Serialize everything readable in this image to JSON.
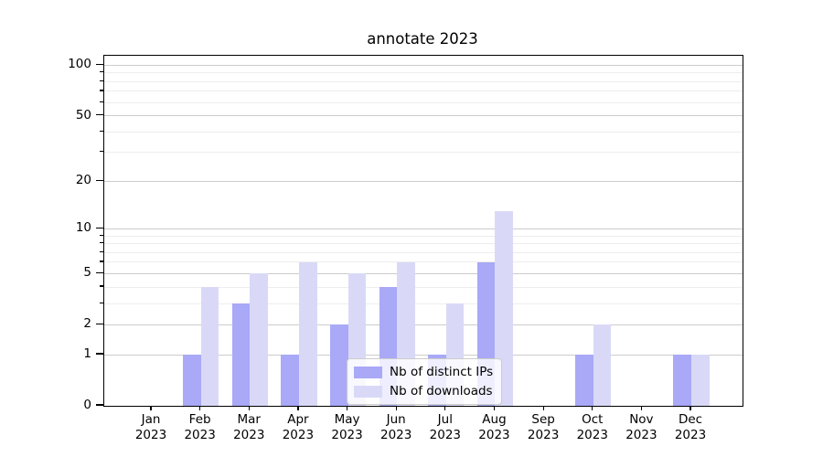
{
  "title": "annotate 2023",
  "legend": {
    "items": [
      {
        "label": "Nb of distinct IPs",
        "swatch": "legend-swatch-distinct-ips"
      },
      {
        "label": "Nb of downloads",
        "swatch": "legend-swatch-downloads"
      }
    ]
  },
  "colors": {
    "distinct_ips_bar": "#a9a9f7",
    "downloads_bar": "#d9d9f7",
    "grid_major": "#cccccc",
    "grid_minor": "#ededed",
    "axis": "#000000"
  },
  "chart_data": {
    "type": "bar",
    "title": "annotate 2023",
    "categories": [
      "Jan",
      "Feb",
      "Mar",
      "Apr",
      "May",
      "Jun",
      "Jul",
      "Aug",
      "Sep",
      "Oct",
      "Nov",
      "Dec"
    ],
    "category_year": "2023",
    "series": [
      {
        "name": "Nb of distinct IPs",
        "color": "#a9a9f7",
        "values": [
          0,
          1,
          3,
          1,
          2,
          4,
          1,
          6,
          0,
          1,
          0,
          1
        ]
      },
      {
        "name": "Nb of downloads",
        "color": "#d9d9f7",
        "values": [
          0,
          4,
          5,
          6,
          5,
          6,
          3,
          13,
          0,
          2,
          0,
          1
        ]
      }
    ],
    "xlabel": "",
    "ylabel": "",
    "yscale": "log1p",
    "ylim": [
      0,
      114
    ],
    "y_major_ticks": [
      0,
      1,
      2,
      5,
      10,
      20,
      50,
      100
    ],
    "y_minor_ticks": [
      3,
      4,
      6,
      7,
      8,
      9,
      30,
      40,
      60,
      70,
      80,
      90
    ],
    "grid": true,
    "legend_position": "lower center"
  }
}
